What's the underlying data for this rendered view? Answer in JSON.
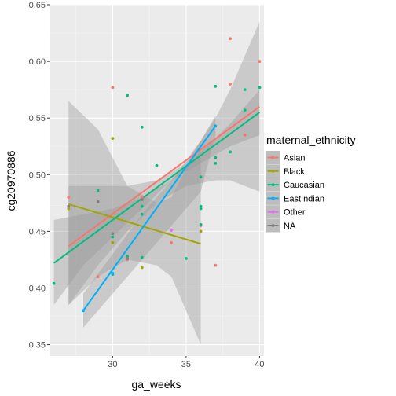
{
  "chart_data": {
    "type": "scatter",
    "xlabel": "ga_weeks",
    "ylabel": "cg20970886",
    "xlim": [
      25.7,
      40.3
    ],
    "ylim": [
      0.34,
      0.65
    ],
    "x_ticks": [
      30,
      35,
      40
    ],
    "x_tick_labels": [
      "30",
      "35",
      "40"
    ],
    "y_ticks": [
      0.35,
      0.4,
      0.45,
      0.5,
      0.55,
      0.6,
      0.65
    ],
    "y_tick_labels": [
      "0.35",
      "0.40",
      "0.45",
      "0.50",
      "0.55",
      "0.60",
      "0.65"
    ],
    "grid": true,
    "legend_position": "right",
    "legend": {
      "title": "maternal_ethnicity",
      "entries": [
        "Asian",
        "Black",
        "Caucasian",
        "EastIndian",
        "Other",
        "NA"
      ]
    },
    "colors": {
      "Asian": "#F8766D",
      "Black": "#A3A500",
      "Caucasian": "#00BF7D",
      "EastIndian": "#00B0F6",
      "Other": "#E76BF3",
      "NA": "#7F7F7F"
    },
    "series": [
      {
        "name": "Asian",
        "points": [
          [
            27,
            0.48
          ],
          [
            29,
            0.41
          ],
          [
            30,
            0.577
          ],
          [
            30,
            0.44
          ],
          [
            31,
            0.425
          ],
          [
            32,
            0.48
          ],
          [
            34,
            0.44
          ],
          [
            36,
            0.455
          ],
          [
            37,
            0.42
          ],
          [
            38,
            0.62
          ],
          [
            38,
            0.58
          ],
          [
            39,
            0.535
          ],
          [
            40,
            0.6
          ]
        ],
        "fit": {
          "x": [
            27,
            40
          ],
          "y": [
            0.437,
            0.56
          ]
        },
        "band": {
          "x": [
            27,
            29,
            31,
            33,
            35,
            37,
            38,
            39,
            40
          ],
          "lo": [
            0.385,
            0.42,
            0.45,
            0.475,
            0.49,
            0.495,
            0.495,
            0.49,
            0.485
          ],
          "hi": [
            0.49,
            0.49,
            0.49,
            0.495,
            0.51,
            0.55,
            0.575,
            0.605,
            0.635
          ]
        }
      },
      {
        "name": "Black",
        "points": [
          [
            27,
            0.47
          ],
          [
            30,
            0.532
          ],
          [
            30,
            0.44
          ],
          [
            32,
            0.418
          ],
          [
            36,
            0.45
          ]
        ],
        "fit": {
          "x": [
            27,
            36
          ],
          "y": [
            0.474,
            0.439
          ]
        },
        "band": {
          "x": [
            27,
            29,
            31,
            33,
            34,
            36
          ],
          "lo": [
            0.385,
            0.41,
            0.425,
            0.42,
            0.41,
            0.35
          ],
          "hi": [
            0.565,
            0.54,
            0.49,
            0.475,
            0.48,
            0.53
          ]
        }
      },
      {
        "name": "Caucasian",
        "points": [
          [
            26,
            0.404
          ],
          [
            29,
            0.486
          ],
          [
            30,
            0.445
          ],
          [
            30,
            0.412
          ],
          [
            31,
            0.57
          ],
          [
            31,
            0.428
          ],
          [
            32,
            0.542
          ],
          [
            32,
            0.472
          ],
          [
            32,
            0.465
          ],
          [
            32,
            0.427
          ],
          [
            33,
            0.508
          ],
          [
            35,
            0.426
          ],
          [
            36,
            0.498
          ],
          [
            36,
            0.47
          ],
          [
            36,
            0.472
          ],
          [
            36,
            0.456
          ],
          [
            37,
            0.578
          ],
          [
            37,
            0.515
          ],
          [
            37,
            0.51
          ],
          [
            38,
            0.52
          ],
          [
            39,
            0.557
          ],
          [
            39,
            0.575
          ],
          [
            40,
            0.577
          ],
          [
            40,
            0.577
          ]
        ],
        "fit": {
          "x": [
            26,
            40
          ],
          "y": [
            0.422,
            0.555
          ]
        },
        "band": {
          "x": [
            26,
            28,
            30,
            32,
            34,
            36,
            38,
            40
          ],
          "lo": [
            0.385,
            0.42,
            0.445,
            0.47,
            0.495,
            0.51,
            0.525,
            0.535
          ],
          "hi": [
            0.46,
            0.465,
            0.47,
            0.48,
            0.495,
            0.52,
            0.545,
            0.575
          ]
        }
      },
      {
        "name": "EastIndian",
        "points": [
          [
            28,
            0.38
          ],
          [
            30,
            0.413
          ],
          [
            37,
            0.543
          ]
        ],
        "fit": {
          "x": [
            28,
            37
          ],
          "y": [
            0.38,
            0.543
          ]
        },
        "band": {
          "x": [
            28,
            30,
            32,
            34,
            36,
            37
          ],
          "lo": [
            0.365,
            0.395,
            0.425,
            0.455,
            0.485,
            0.535
          ],
          "hi": [
            0.395,
            0.43,
            0.465,
            0.495,
            0.53,
            0.552
          ]
        }
      },
      {
        "name": "Other",
        "points": [
          [
            34,
            0.451
          ]
        ],
        "fit": null,
        "band": null
      },
      {
        "name": "NA",
        "points": [
          [
            27,
            0.472
          ],
          [
            29,
            0.476
          ],
          [
            30,
            0.448
          ],
          [
            31,
            0.426
          ],
          [
            32,
            0.478
          ]
        ],
        "fit": null,
        "band": null
      }
    ]
  }
}
